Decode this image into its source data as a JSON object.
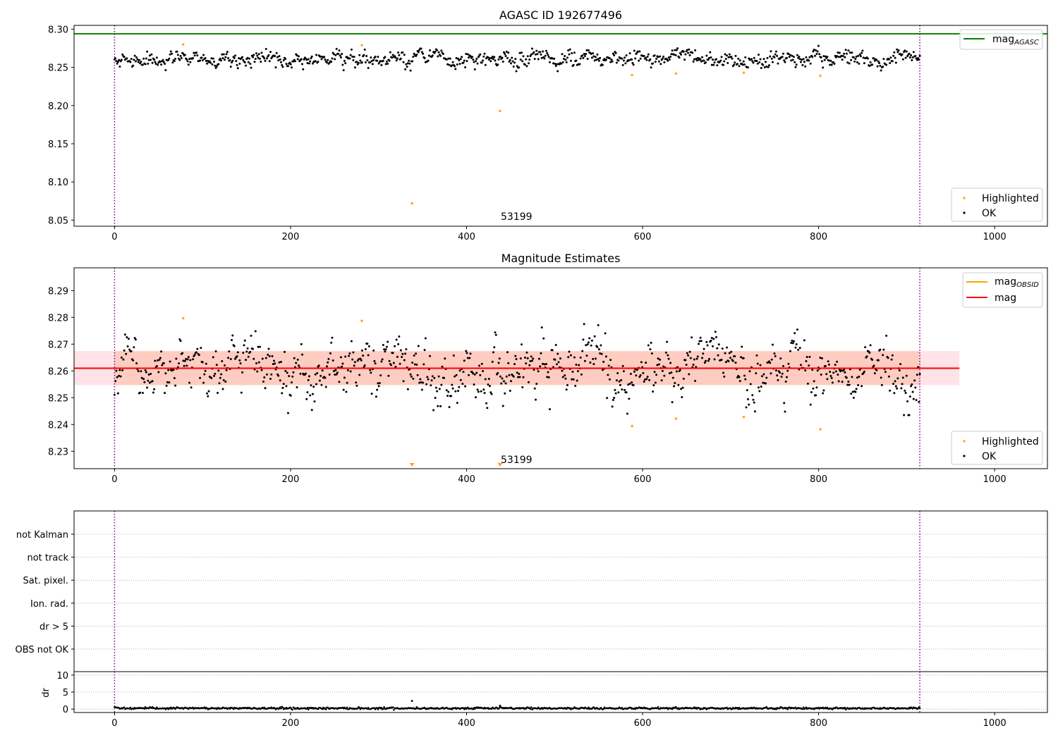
{
  "chart_data": [
    {
      "type": "scatter",
      "title": "AGASC ID 192677496",
      "xlabel": "",
      "ylabel": "",
      "xlim": [
        -46,
        1060
      ],
      "ylim": [
        8.042,
        8.305
      ],
      "xticks": [
        0,
        200,
        400,
        600,
        800,
        1000
      ],
      "xtick_labels": [
        "0",
        "200",
        "400",
        "600",
        "800",
        "1000"
      ],
      "yticks": [
        8.05,
        8.1,
        8.15,
        8.2,
        8.25,
        8.3
      ],
      "ytick_labels": [
        "8.05",
        "8.10",
        "8.15",
        "8.20",
        "8.25",
        "8.30"
      ],
      "legends": [
        {
          "placement": "top-right",
          "entries": [
            {
              "label": "mag",
              "sub": "AGASC",
              "marker": "line",
              "color": "#008000"
            }
          ]
        },
        {
          "placement": "bottom-right",
          "entries": [
            {
              "label": "Highlighted",
              "marker": "dot",
              "color": "#ffa500"
            },
            {
              "label": "OK",
              "marker": "dot",
              "color": "#000000"
            }
          ]
        }
      ],
      "reference_lines": [
        {
          "name": "mag_AGASC",
          "orientation": "horizontal",
          "y": 8.294,
          "color": "#008000"
        },
        {
          "orientation": "vertical",
          "x": 0,
          "color": "#800080",
          "style": "dotted"
        },
        {
          "orientation": "vertical",
          "x": 915,
          "color": "#800080",
          "style": "dotted"
        }
      ],
      "annotations": [
        {
          "text": "53199",
          "x": 438,
          "y": 8.052
        }
      ],
      "series": [
        {
          "name": "OK",
          "color": "#000000",
          "style": "dots",
          "x_range": [
            0,
            915
          ],
          "count": 915,
          "baseline": 8.261,
          "spread": 0.0065
        },
        {
          "name": "Highlighted",
          "color": "#ffa500",
          "style": "dots",
          "points": [
            [
              78,
              8.28
            ],
            [
              281,
              8.279
            ],
            [
              338,
              8.072
            ],
            [
              438,
              8.193
            ],
            [
              588,
              8.24
            ],
            [
              638,
              8.242
            ],
            [
              715,
              8.243
            ],
            [
              802,
              8.239
            ]
          ]
        }
      ],
      "grid": false
    },
    {
      "type": "scatter",
      "title": "Magnitude Estimates",
      "xlabel": "",
      "ylabel": "",
      "xlim": [
        -46,
        1060
      ],
      "ylim": [
        8.2235,
        8.2985
      ],
      "xticks": [
        0,
        200,
        400,
        600,
        800,
        1000
      ],
      "xtick_labels": [
        "0",
        "200",
        "400",
        "600",
        "800",
        "1000"
      ],
      "yticks": [
        8.23,
        8.24,
        8.25,
        8.26,
        8.27,
        8.28,
        8.29
      ],
      "ytick_labels": [
        "8.23",
        "8.24",
        "8.25",
        "8.26",
        "8.27",
        "8.28",
        "8.29"
      ],
      "legends": [
        {
          "placement": "top-right",
          "entries": [
            {
              "label": "mag",
              "sub": "OBSID",
              "marker": "line",
              "color": "#ffa500"
            },
            {
              "label": "mag",
              "marker": "line",
              "color": "#ff0000"
            }
          ]
        },
        {
          "placement": "bottom-right",
          "entries": [
            {
              "label": "Highlighted",
              "marker": "dot",
              "color": "#ffa500"
            },
            {
              "label": "OK",
              "marker": "dot",
              "color": "#000000"
            }
          ]
        }
      ],
      "bands": [
        {
          "name": "mag range",
          "x": [
            -46,
            960
          ],
          "y": [
            8.2547,
            8.2674
          ],
          "color": "#ffc0cb",
          "opacity": 0.45
        },
        {
          "name": "mag_OBSID range",
          "x": [
            0,
            915
          ],
          "y": [
            8.2547,
            8.2674
          ],
          "color": "#ffa07a",
          "opacity": 0.35
        }
      ],
      "reference_lines": [
        {
          "name": "mag_OBSID",
          "orientation": "horizontal",
          "x": [
            0,
            915
          ],
          "y": 8.261,
          "color": "#ffa500"
        },
        {
          "name": "mag",
          "orientation": "horizontal",
          "x": [
            -46,
            960
          ],
          "y": 8.261,
          "color": "#ff0000"
        },
        {
          "orientation": "vertical",
          "x": 0,
          "color": "#800080",
          "style": "dotted"
        },
        {
          "orientation": "vertical",
          "x": 915,
          "color": "#800080",
          "style": "dotted"
        }
      ],
      "annotations": [
        {
          "text": "53199",
          "x": 438,
          "y": 8.2245
        }
      ],
      "offscale_markers": [
        {
          "x": 338,
          "color": "#ffa500",
          "direction": "down"
        },
        {
          "x": 438,
          "color": "#ffa500",
          "direction": "down"
        }
      ],
      "series": [
        {
          "name": "OK",
          "color": "#000000",
          "style": "dots",
          "x_range": [
            0,
            915
          ],
          "count": 915,
          "baseline": 8.261,
          "spread": 0.0065
        },
        {
          "name": "Highlighted",
          "color": "#ffa500",
          "style": "dots",
          "points": [
            [
              78,
              8.2797
            ],
            [
              281,
              8.2787
            ],
            [
              588,
              8.2394
            ],
            [
              638,
              8.2422
            ],
            [
              715,
              8.2428
            ],
            [
              802,
              8.2382
            ]
          ]
        }
      ],
      "grid": false
    },
    {
      "type": "scatter",
      "title": "",
      "xlabel": "",
      "ylabel": "",
      "xlim": [
        -46,
        1060
      ],
      "categories": [
        "not Kalman",
        "not track",
        "Sat. pixel.",
        "Ion. rad.",
        "dr > 5",
        "OBS not OK"
      ],
      "grid": true,
      "reference_lines": [
        {
          "orientation": "vertical",
          "x": 0,
          "color": "#800080",
          "style": "dotted"
        },
        {
          "orientation": "vertical",
          "x": 915,
          "color": "#800080",
          "style": "dotted"
        }
      ],
      "series": []
    },
    {
      "type": "scatter",
      "title": "",
      "xlabel": "",
      "ylabel": "dr",
      "xlim": [
        -46,
        1060
      ],
      "ylim": [
        -1,
        11
      ],
      "xticks": [
        0,
        200,
        400,
        600,
        800,
        1000
      ],
      "xtick_labels": [
        "0",
        "200",
        "400",
        "600",
        "800",
        "1000"
      ],
      "yticks": [
        0,
        5,
        10
      ],
      "ytick_labels": [
        "0",
        "5",
        "10"
      ],
      "grid": true,
      "reference_lines": [
        {
          "orientation": "vertical",
          "x": 0,
          "color": "#800080",
          "style": "dotted"
        },
        {
          "orientation": "vertical",
          "x": 915,
          "color": "#800080",
          "style": "dotted"
        }
      ],
      "series": [
        {
          "name": "dr",
          "color": "#000000",
          "style": "dots",
          "x_range": [
            0,
            915
          ],
          "count": 915,
          "baseline": 0.25,
          "spread": 0.15,
          "points": [
            [
              338,
              2.4
            ],
            [
              438,
              1.0
            ]
          ]
        }
      ]
    }
  ]
}
